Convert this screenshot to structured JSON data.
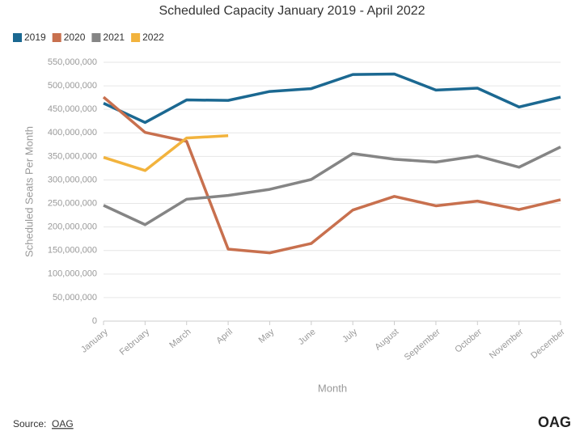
{
  "chart_data": {
    "type": "line",
    "title": "Scheduled Capacity January 2019 - April 2022",
    "x_label": "Month",
    "y_label": "Scheduled Seats Per Month",
    "source_prefix": "Source:",
    "source_link": "OAG",
    "logo": "OAG",
    "categories": [
      "January",
      "February",
      "March",
      "April",
      "May",
      "June",
      "July",
      "August",
      "September",
      "October",
      "November",
      "December"
    ],
    "series": [
      {
        "name": "2019",
        "color": "#1b6891",
        "values": [
          463000000,
          422000000,
          470000000,
          469000000,
          488000000,
          494000000,
          524000000,
          525000000,
          491000000,
          495000000,
          455000000,
          476000000
        ]
      },
      {
        "name": "2020",
        "color": "#c8704e",
        "values": [
          476000000,
          401000000,
          382000000,
          153000000,
          145000000,
          165000000,
          236000000,
          265000000,
          245000000,
          255000000,
          237000000,
          258000000
        ]
      },
      {
        "name": "2021",
        "color": "#858585",
        "values": [
          246000000,
          205000000,
          259000000,
          267000000,
          280000000,
          301000000,
          356000000,
          344000000,
          338000000,
          351000000,
          327000000,
          370000000
        ]
      },
      {
        "name": "2022",
        "color": "#f2b33d",
        "values": [
          348000000,
          320000000,
          389000000,
          394000000,
          null,
          null,
          null,
          null,
          null,
          null,
          null,
          null
        ]
      }
    ],
    "ylim": [
      0,
      550000000
    ],
    "yticks": [
      0,
      {
        "value": 50000000,
        "label": "50,000,000"
      },
      {
        "value": 100000000,
        "label": "100,000,000"
      },
      {
        "value": 150000000,
        "label": "150,000,000"
      },
      {
        "value": 200000000,
        "label": "200,000,000"
      },
      {
        "value": 250000000,
        "label": "250,000,000"
      },
      {
        "value": 300000000,
        "label": "300,000,000"
      },
      {
        "value": 350000000,
        "label": "350,000,000"
      },
      {
        "value": 400000000,
        "label": "400,000,000"
      },
      {
        "value": 450000000,
        "label": "450,000,000"
      },
      {
        "value": 500000000,
        "label": "500,000,000"
      },
      {
        "value": 550000000,
        "label": "550,000,000"
      }
    ],
    "grid": true,
    "legend": "top-left"
  }
}
